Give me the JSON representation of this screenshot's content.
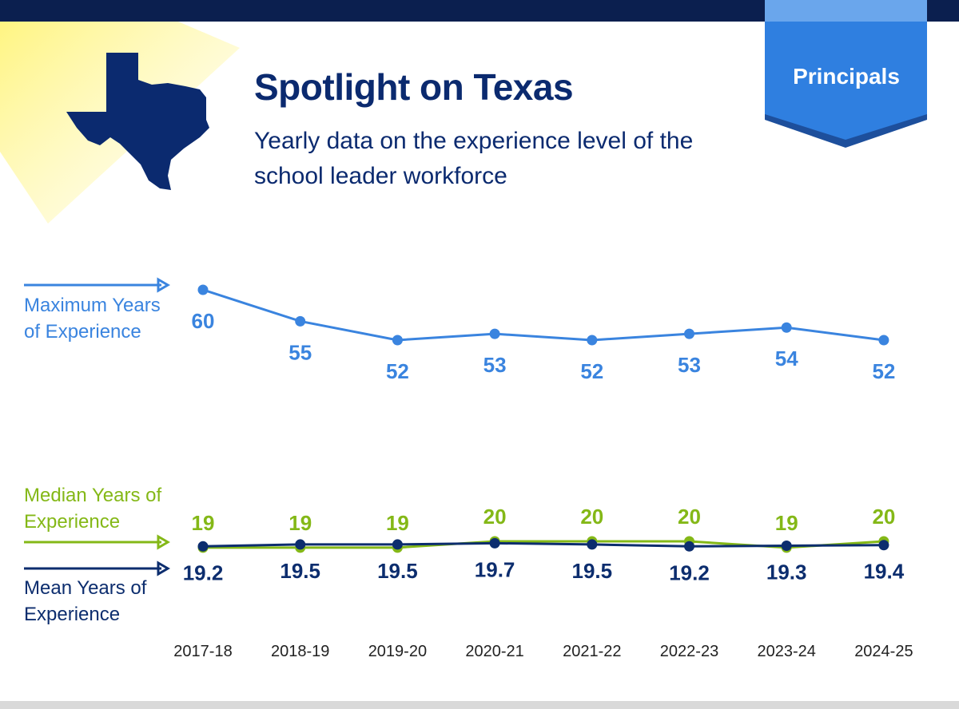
{
  "header": {
    "title": "Spotlight on Texas",
    "subtitle": "Yearly data on the experience level of the school leader workforce",
    "badge": "Principals"
  },
  "chart_data": {
    "type": "line",
    "categories": [
      "2017-18",
      "2018-19",
      "2019-20",
      "2020-21",
      "2021-22",
      "2022-23",
      "2023-24",
      "2024-25"
    ],
    "ylim": [
      0,
      65
    ],
    "series": [
      {
        "name": "Maximum Years of Experience",
        "color": "#3a84df",
        "values": [
          60,
          55,
          52,
          53,
          52,
          53,
          54,
          52
        ]
      },
      {
        "name": "Median Years of Experience",
        "color": "#84b817",
        "values": [
          19,
          19,
          19,
          20,
          20,
          20,
          19,
          20
        ]
      },
      {
        "name": "Mean Years of Experience",
        "color": "#0c2d6e",
        "values": [
          19.2,
          19.5,
          19.5,
          19.7,
          19.5,
          19.2,
          19.3,
          19.4
        ]
      }
    ]
  }
}
